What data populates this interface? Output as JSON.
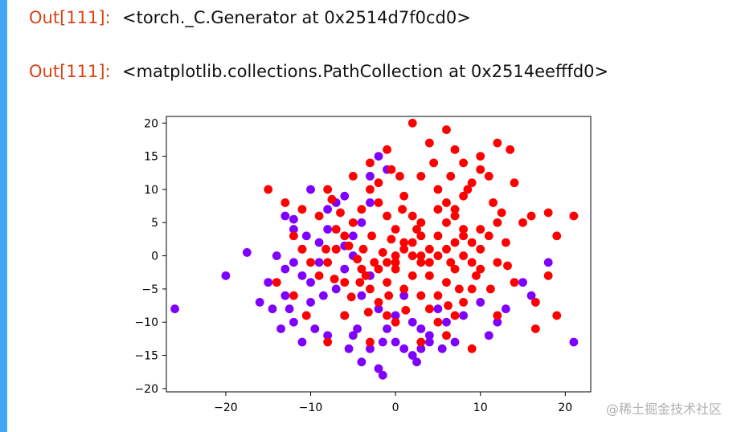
{
  "outputs": [
    {
      "prompt": "Out[111]:",
      "text": "<torch._C.Generator at 0x2514d7f0cd0>"
    },
    {
      "prompt": "Out[111]:",
      "text": "<matplotlib.collections.PathCollection at 0x2514eefffd0>"
    }
  ],
  "watermark": "@稀土掘金技术社区",
  "colors": {
    "accent_bar": "#42A5F5",
    "prompt": "#D84315",
    "series_purple": "#7F00FF",
    "series_red": "#FF0000"
  },
  "chart_data": {
    "type": "scatter",
    "xlim": [
      -27,
      23
    ],
    "ylim": [
      -20.5,
      21
    ],
    "x_ticks": [
      -20,
      -10,
      0,
      10,
      20
    ],
    "y_ticks": [
      -20,
      -15,
      -10,
      -5,
      0,
      5,
      10,
      15,
      20
    ],
    "x_tick_labels": [
      "−20",
      "−10",
      "0",
      "10",
      "20"
    ],
    "y_tick_labels": [
      "−20",
      "−15",
      "−10",
      "−5",
      "0",
      "5",
      "10",
      "15",
      "20"
    ],
    "grid": false,
    "series": [
      {
        "color": "#7F00FF",
        "points": [
          [
            -26,
            -8
          ],
          [
            -20,
            -3
          ],
          [
            -17.5,
            0.5
          ],
          [
            -16,
            -7
          ],
          [
            -15,
            -4
          ],
          [
            -14.5,
            -8
          ],
          [
            -13,
            6
          ],
          [
            -13,
            -2
          ],
          [
            -12,
            4
          ],
          [
            -12,
            -10
          ],
          [
            -11,
            -13
          ],
          [
            -10,
            10
          ],
          [
            -10,
            -4
          ],
          [
            -9.5,
            -11
          ],
          [
            -8,
            -12
          ],
          [
            -8.5,
            -6
          ],
          [
            -7,
            8
          ],
          [
            -6,
            -9
          ],
          [
            -5,
            -12
          ],
          [
            -5,
            3
          ],
          [
            -4,
            -16
          ],
          [
            -3,
            -14
          ],
          [
            -2,
            -17
          ],
          [
            -1.5,
            -18
          ],
          [
            -1,
            -11
          ],
          [
            0,
            -13
          ],
          [
            2,
            -15
          ],
          [
            2.5,
            -16
          ],
          [
            3,
            -14
          ],
          [
            4,
            -12
          ],
          [
            5,
            -8
          ],
          [
            -3,
            12
          ],
          [
            -2,
            15
          ],
          [
            -1,
            13
          ],
          [
            -6,
            9
          ],
          [
            -8,
            7
          ],
          [
            -9,
            2
          ],
          [
            -11,
            -3
          ],
          [
            -10,
            -7
          ],
          [
            -7,
            -5
          ],
          [
            -6,
            -2
          ],
          [
            -4,
            -6
          ],
          [
            -3,
            -3
          ],
          [
            -2,
            -8
          ],
          [
            0,
            -9
          ],
          [
            1,
            -6
          ],
          [
            2,
            -10
          ],
          [
            3,
            -11
          ],
          [
            6,
            -10
          ],
          [
            7,
            -13
          ],
          [
            8,
            -9
          ],
          [
            10,
            -7
          ],
          [
            11,
            -12
          ],
          [
            12,
            -10
          ],
          [
            13,
            -8
          ],
          [
            15,
            -4
          ],
          [
            16,
            -6
          ],
          [
            18,
            -1
          ],
          [
            21,
            -13
          ],
          [
            -13,
            -6
          ],
          [
            -12,
            -1
          ],
          [
            -11,
            1
          ],
          [
            -9,
            -1
          ],
          [
            -7,
            1
          ],
          [
            -5,
            0
          ],
          [
            -4,
            5
          ],
          [
            -3,
            8
          ],
          [
            -12,
            5.5
          ],
          [
            -10.5,
            3
          ],
          [
            -8,
            4
          ],
          [
            -6,
            1.5
          ],
          [
            -14,
            0
          ],
          [
            -13.5,
            -11
          ],
          [
            -12.5,
            -8
          ],
          [
            -5.5,
            -14
          ],
          [
            -4.5,
            -11
          ],
          [
            -1.5,
            -13
          ],
          [
            1,
            -14
          ],
          [
            4,
            -13
          ],
          [
            5.5,
            -14
          ]
        ]
      },
      {
        "color": "#FF0000",
        "points": [
          [
            2,
            20
          ],
          [
            6,
            19
          ],
          [
            4,
            17
          ],
          [
            7,
            16
          ],
          [
            10,
            15
          ],
          [
            12,
            17
          ],
          [
            13.5,
            16
          ],
          [
            8,
            14
          ],
          [
            11,
            12
          ],
          [
            14,
            11
          ],
          [
            16,
            6
          ],
          [
            18,
            6.5
          ],
          [
            21,
            6
          ],
          [
            19,
            3
          ],
          [
            15,
            5
          ],
          [
            13,
            2
          ],
          [
            12,
            -1
          ],
          [
            14,
            -4
          ],
          [
            18,
            -3
          ],
          [
            19,
            -9
          ],
          [
            16.5,
            -7
          ],
          [
            16.5,
            -11
          ],
          [
            12,
            -9
          ],
          [
            9,
            -14
          ],
          [
            6,
            -12
          ],
          [
            3,
            -13
          ],
          [
            0,
            -10
          ],
          [
            -3,
            -13
          ],
          [
            -6,
            -9
          ],
          [
            -8,
            -13
          ],
          [
            -10.5,
            -9
          ],
          [
            -12,
            -6
          ],
          [
            -14,
            -4
          ],
          [
            -15,
            10
          ],
          [
            -13,
            8
          ],
          [
            -11,
            7
          ],
          [
            -8,
            10
          ],
          [
            -5,
            12
          ],
          [
            -3,
            14
          ],
          [
            -1,
            16
          ],
          [
            0.5,
            12
          ],
          [
            3,
            12
          ],
          [
            5,
            10
          ],
          [
            6,
            8
          ],
          [
            7,
            6
          ],
          [
            8,
            4
          ],
          [
            9,
            2
          ],
          [
            10,
            1
          ],
          [
            11,
            3
          ],
          [
            12,
            5
          ],
          [
            10,
            -2
          ],
          [
            9,
            -5
          ],
          [
            8,
            -7
          ],
          [
            7,
            -9
          ],
          [
            5,
            -6
          ],
          [
            4,
            -3
          ],
          [
            3,
            -1
          ],
          [
            2,
            0
          ],
          [
            1,
            2
          ],
          [
            0,
            4
          ],
          [
            -1,
            6
          ],
          [
            -2,
            8
          ],
          [
            -3,
            10
          ],
          [
            -4,
            7
          ],
          [
            -5,
            5
          ],
          [
            -6,
            3
          ],
          [
            -7,
            1
          ],
          [
            -8,
            -1
          ],
          [
            -9,
            -3
          ],
          [
            -10,
            -1
          ],
          [
            -11,
            1
          ],
          [
            -12,
            3
          ],
          [
            -9,
            6
          ],
          [
            -7,
            4
          ],
          [
            -6,
            -4
          ],
          [
            -4,
            -2
          ],
          [
            -3,
            -5
          ],
          [
            -2,
            -7
          ],
          [
            -1,
            -4
          ],
          [
            0,
            -2
          ],
          [
            1,
            -5
          ],
          [
            2,
            -3
          ],
          [
            3,
            -6
          ],
          [
            4,
            -8
          ],
          [
            5,
            -10
          ],
          [
            6,
            -4
          ],
          [
            7,
            -2
          ],
          [
            8,
            0
          ],
          [
            9,
            -1
          ],
          [
            10,
            4
          ],
          [
            1,
            9
          ],
          [
            2,
            6
          ],
          [
            3,
            3
          ],
          [
            4,
            1
          ],
          [
            5,
            3
          ],
          [
            6,
            5
          ],
          [
            7,
            7
          ],
          [
            8,
            9
          ],
          [
            9,
            11
          ],
          [
            10,
            13
          ],
          [
            0.8,
            7
          ],
          [
            -0.5,
            2.5
          ],
          [
            -1.5,
            0.5
          ],
          [
            -2.5,
            -1
          ],
          [
            -3.5,
            -3
          ],
          [
            -4.5,
            -0.5
          ],
          [
            -5.5,
            1.5
          ],
          [
            -6.5,
            6.5
          ],
          [
            -7.5,
            8.5
          ],
          [
            -2,
            11
          ],
          [
            -0.5,
            13
          ],
          [
            4.5,
            14
          ],
          [
            6.5,
            12
          ],
          [
            8.5,
            10
          ],
          [
            11.5,
            8
          ],
          [
            12.5,
            6.5
          ],
          [
            13.2,
            -1.5
          ],
          [
            6.2,
            -7.5
          ],
          [
            1.2,
            -8.2
          ],
          [
            -1,
            -9
          ],
          [
            -3.2,
            -8.5
          ],
          [
            -5.2,
            -6.2
          ],
          [
            -7.2,
            -3.5
          ],
          [
            -8.2,
            1
          ],
          [
            0,
            0
          ],
          [
            1,
            1
          ],
          [
            2,
            2
          ],
          [
            3,
            0
          ],
          [
            4,
            -1
          ],
          [
            5,
            0
          ],
          [
            6,
            1
          ],
          [
            7,
            2
          ],
          [
            8,
            3
          ],
          [
            -1,
            -1
          ],
          [
            -2,
            -2
          ],
          [
            0,
            -1
          ],
          [
            3,
            5
          ],
          [
            5,
            7
          ],
          [
            2.5,
            4
          ],
          [
            6.5,
            -1
          ],
          [
            7.5,
            -5
          ],
          [
            9.5,
            -3
          ],
          [
            11.2,
            -5
          ],
          [
            -2.8,
            3
          ],
          [
            -3.8,
            1
          ],
          [
            -4.2,
            -4
          ],
          [
            -0.8,
            -6
          ]
        ]
      }
    ]
  }
}
